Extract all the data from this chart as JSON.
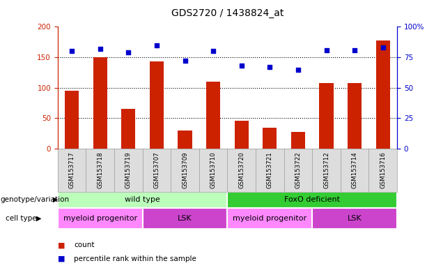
{
  "title": "GDS2720 / 1438824_at",
  "samples": [
    "GSM153717",
    "GSM153718",
    "GSM153719",
    "GSM153707",
    "GSM153709",
    "GSM153710",
    "GSM153720",
    "GSM153721",
    "GSM153722",
    "GSM153712",
    "GSM153714",
    "GSM153716"
  ],
  "counts": [
    95,
    150,
    65,
    143,
    30,
    110,
    46,
    35,
    28,
    108,
    108,
    178
  ],
  "percentiles": [
    80,
    82,
    79,
    85,
    72,
    80,
    68,
    67,
    65,
    81,
    81,
    83
  ],
  "bar_color": "#CC2200",
  "dot_color": "#0000CC",
  "left_ylim": [
    0,
    200
  ],
  "right_ylim": [
    0,
    100
  ],
  "left_yticks": [
    0,
    50,
    100,
    150,
    200
  ],
  "right_yticks": [
    0,
    25,
    50,
    75,
    100
  ],
  "right_yticklabels": [
    "0",
    "25",
    "50",
    "75",
    "100%"
  ],
  "grid_values": [
    50,
    100,
    150
  ],
  "genotype_groups": [
    {
      "label": "wild type",
      "start": 0,
      "end": 6,
      "color": "#BBFFBB"
    },
    {
      "label": "FoxO deficient",
      "start": 6,
      "end": 12,
      "color": "#33CC33"
    }
  ],
  "celltype_groups": [
    {
      "label": "myeloid progenitor",
      "start": 0,
      "end": 3,
      "color": "#FF88FF"
    },
    {
      "label": "LSK",
      "start": 3,
      "end": 6,
      "color": "#CC44CC"
    },
    {
      "label": "myeloid progenitor",
      "start": 6,
      "end": 9,
      "color": "#FF88FF"
    },
    {
      "label": "LSK",
      "start": 9,
      "end": 12,
      "color": "#CC44CC"
    }
  ],
  "background_color": "#FFFFFF",
  "bar_width": 0.5,
  "genotype_label": "genotype/variation",
  "celltype_label": "cell type",
  "legend_count_text": "count",
  "legend_pct_text": "percentile rank within the sample",
  "tick_bg_color": "#DDDDDD",
  "tick_border_color": "#999999"
}
